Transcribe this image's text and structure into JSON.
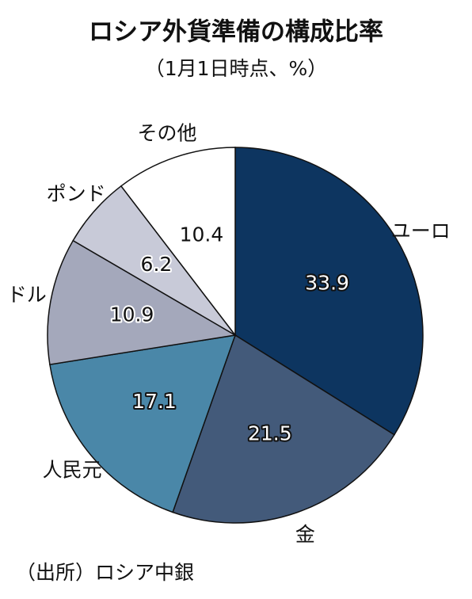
{
  "chart_data": {
    "type": "pie",
    "title": "ロシア外貨準備の構成比率",
    "subtitle": "（1月1日時点、%）",
    "source": "（出所）ロシア中銀",
    "categories": [
      "ユーロ",
      "金",
      "人民元",
      "ドル",
      "ポンド",
      "その他"
    ],
    "values": [
      33.9,
      21.5,
      17.1,
      10.9,
      6.2,
      10.4
    ],
    "colors": [
      "#0d3560",
      "#435a7a",
      "#4a87a8",
      "#a4a8bb",
      "#c8cad8",
      "#ffffff"
    ],
    "value_label_colors": [
      "#ffffff",
      "#ffffff",
      "#ffffff",
      "#111111",
      "#111111",
      "#111111"
    ]
  }
}
